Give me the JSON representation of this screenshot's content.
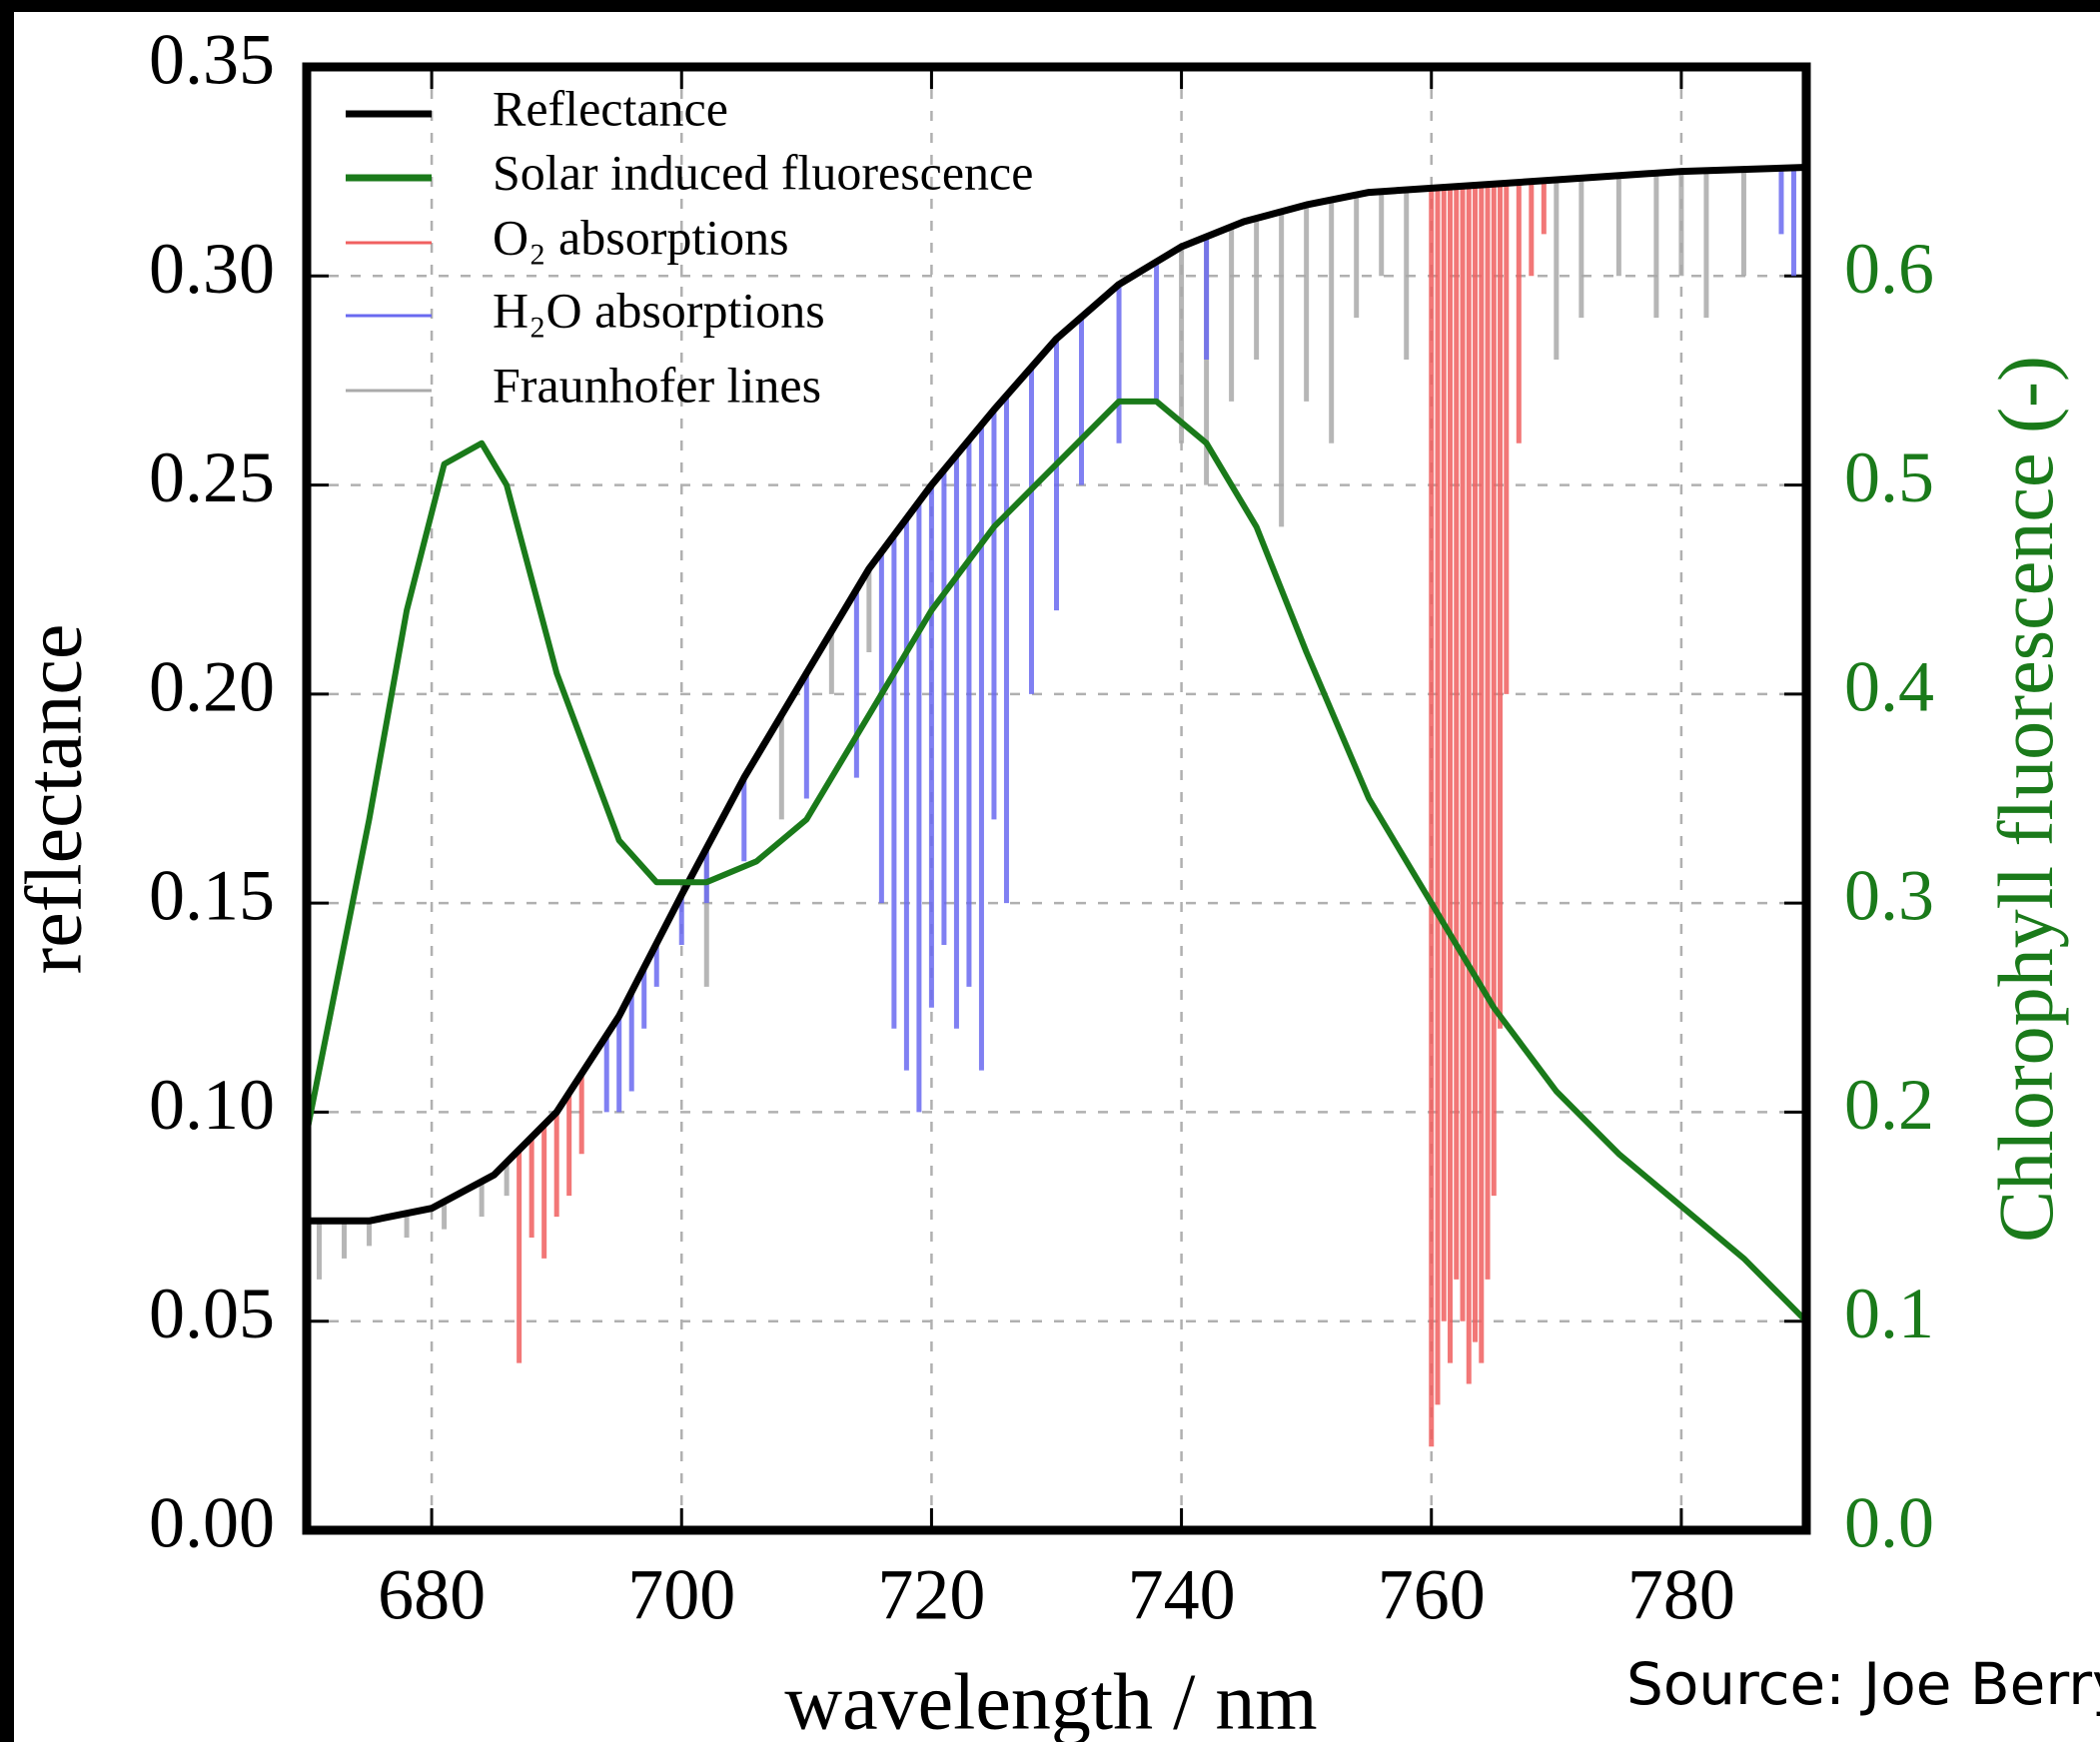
{
  "chart_data": {
    "type": "line",
    "xlabel": "wavelength / nm",
    "ylabel": "reflectance",
    "y2label": "Chlorophyll fluorescence (-)",
    "annotation": "Source: Joe Berry",
    "xlim": [
      670,
      790
    ],
    "xticks": [
      680,
      700,
      720,
      740,
      760,
      780
    ],
    "ylim": [
      0,
      0.35
    ],
    "yticks": [
      {
        "value": 0,
        "label": "0.00"
      },
      0.05,
      {
        "value": 0.1,
        "label": "0.10"
      },
      0.15,
      {
        "value": 0.2,
        "label": "0.20"
      },
      0.25,
      {
        "value": 0.3,
        "label": "0.30"
      },
      0.35
    ],
    "y2lim": [
      0,
      0.7
    ],
    "y2ticks": [
      {
        "value": 0,
        "label": "0.0"
      },
      0.1,
      0.2,
      0.3,
      0.4,
      0.5,
      0.6
    ],
    "y2color": "#1a7a1a",
    "grid": true,
    "legend": "upper left",
    "series": [
      {
        "name": "Reflectance",
        "color": "#000000",
        "style": "line",
        "x": [
          670,
          675,
          680,
          685,
          690,
          695,
          700,
          705,
          710,
          715,
          720,
          725,
          730,
          735,
          740,
          745,
          750,
          755,
          760,
          770,
          780,
          790
        ],
        "values": [
          0.074,
          0.074,
          0.077,
          0.085,
          0.1,
          0.123,
          0.152,
          0.18,
          0.205,
          0.23,
          0.25,
          0.268,
          0.285,
          0.298,
          0.307,
          0.313,
          0.317,
          0.32,
          0.321,
          0.323,
          0.325,
          0.326
        ]
      },
      {
        "name": "Solar induced fluorescence",
        "color": "#1a7a1a",
        "style": "line",
        "axis": "y2",
        "x": [
          670,
          675,
          678,
          681,
          684,
          686,
          690,
          695,
          698,
          702,
          706,
          710,
          715,
          720,
          725,
          730,
          735,
          738,
          742,
          746,
          750,
          755,
          760,
          765,
          770,
          775,
          780,
          785,
          790
        ],
        "values": [
          0.19,
          0.34,
          0.44,
          0.51,
          0.52,
          0.5,
          0.41,
          0.33,
          0.31,
          0.31,
          0.32,
          0.34,
          0.39,
          0.44,
          0.48,
          0.51,
          0.54,
          0.54,
          0.52,
          0.48,
          0.42,
          0.35,
          0.3,
          0.25,
          0.21,
          0.18,
          0.155,
          0.13,
          0.1
        ]
      },
      {
        "name": "O₂ absorptions",
        "color": "#f06060",
        "style": "vlines",
        "x": [
          687,
          688,
          689,
          690,
          691,
          692,
          760,
          760.5,
          761,
          761.5,
          762,
          762.5,
          763,
          763.5,
          764,
          764.5,
          765,
          765.5,
          766,
          767,
          768,
          769
        ],
        "values": [
          0.04,
          0.07,
          0.065,
          0.075,
          0.08,
          0.09,
          0.02,
          0.03,
          0.05,
          0.04,
          0.06,
          0.05,
          0.035,
          0.045,
          0.04,
          0.06,
          0.08,
          0.12,
          0.2,
          0.26,
          0.3,
          0.31
        ]
      },
      {
        "name": "H₂O absorptions",
        "color": "#6a6af0",
        "style": "vlines",
        "x": [
          694,
          695,
          696,
          697,
          698,
          700,
          702,
          705,
          710,
          714,
          716,
          717,
          718,
          719,
          720,
          721,
          722,
          723,
          724,
          725,
          726,
          728,
          730,
          732,
          735,
          738,
          742,
          788,
          789,
          790
        ],
        "values": [
          0.1,
          0.1,
          0.105,
          0.12,
          0.13,
          0.14,
          0.15,
          0.16,
          0.175,
          0.18,
          0.15,
          0.12,
          0.11,
          0.1,
          0.125,
          0.14,
          0.12,
          0.13,
          0.11,
          0.17,
          0.15,
          0.2,
          0.22,
          0.25,
          0.26,
          0.27,
          0.28,
          0.31,
          0.3,
          0.305
        ]
      },
      {
        "name": "Fraunhofer lines",
        "color": "#aaaaaa",
        "style": "vlines",
        "x": [
          671,
          673,
          675,
          678,
          681,
          684,
          686,
          702,
          708,
          712,
          715,
          740,
          742,
          744,
          746,
          748,
          750,
          752,
          754,
          756,
          758,
          770,
          772,
          775,
          778,
          780,
          782,
          785
        ],
        "values": [
          0.06,
          0.065,
          0.068,
          0.07,
          0.072,
          0.075,
          0.08,
          0.13,
          0.17,
          0.2,
          0.21,
          0.26,
          0.25,
          0.27,
          0.28,
          0.24,
          0.27,
          0.26,
          0.29,
          0.3,
          0.28,
          0.28,
          0.29,
          0.3,
          0.29,
          0.3,
          0.29,
          0.3
        ]
      }
    ]
  }
}
